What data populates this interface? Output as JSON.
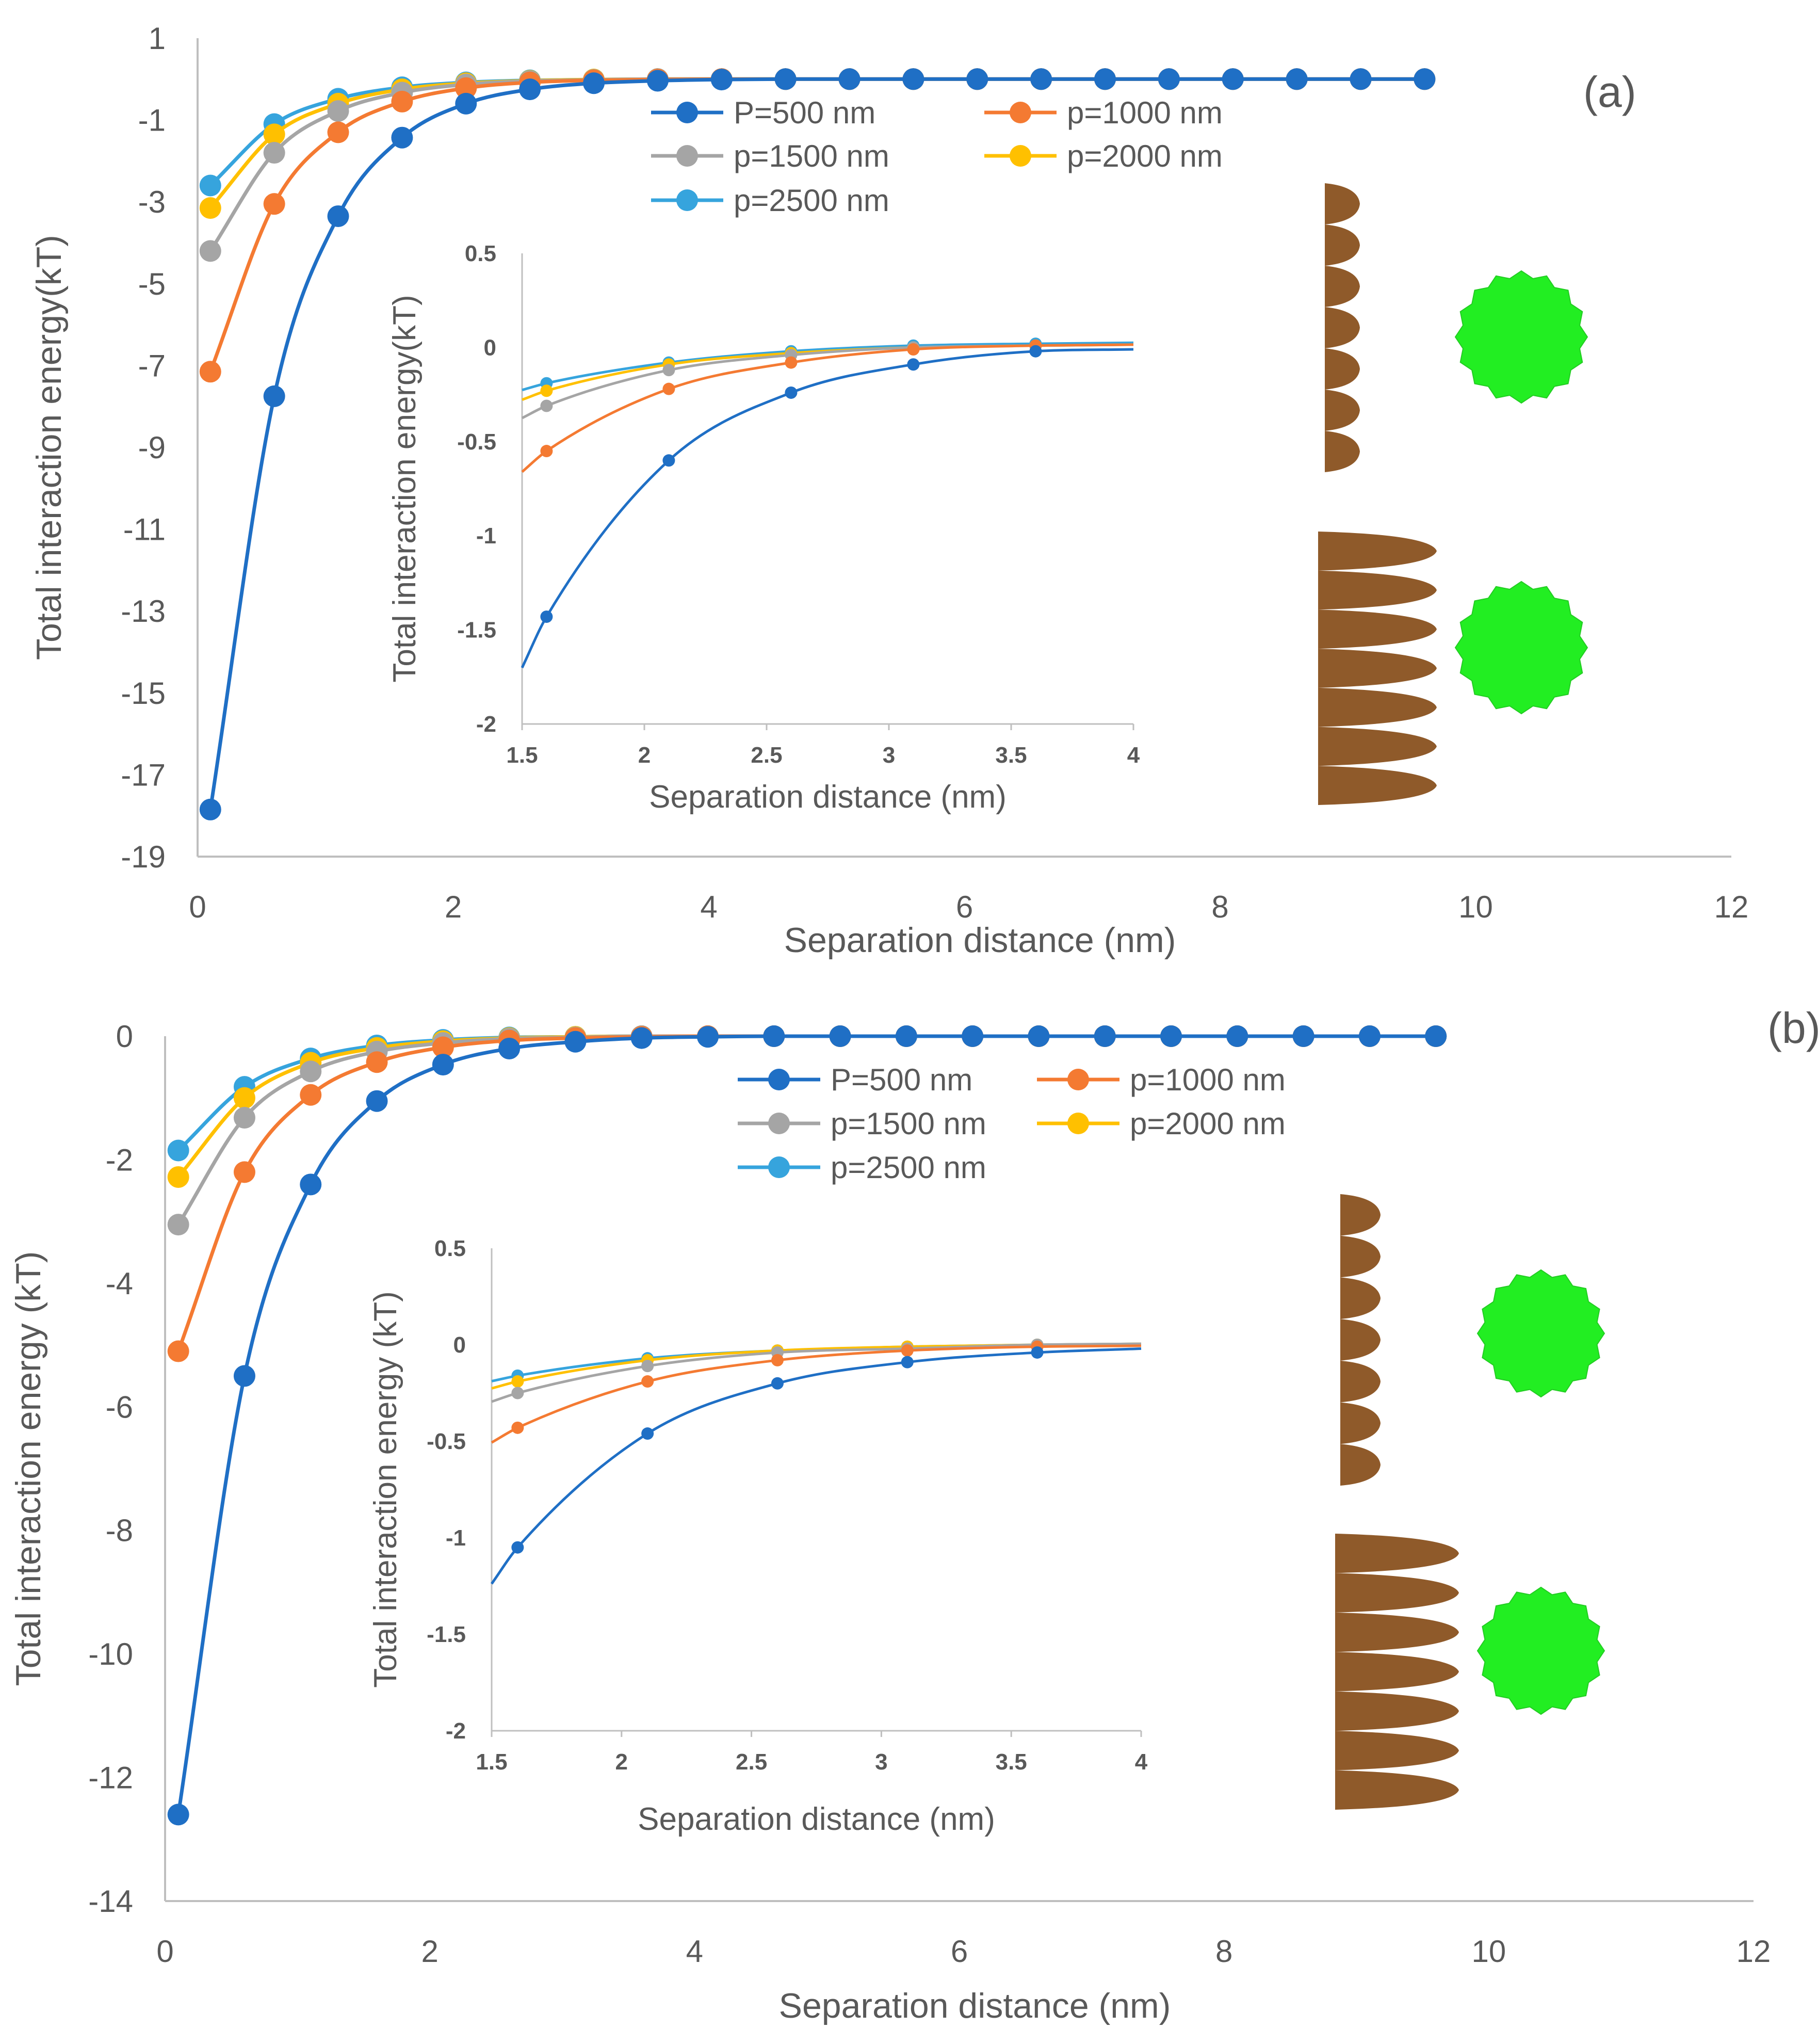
{
  "figure": {
    "colors": {
      "P500": "#1f6fc5",
      "p1000": "#f47a32",
      "p1500": "#a5a5a5",
      "p2000": "#ffc000",
      "p2500": "#36a4dd",
      "axis": "#bfbfbf",
      "text": "#595959",
      "sawtooth": "#8f5a2a",
      "particle": "#22ee22"
    },
    "icons": [
      "sawtooth-surface-icon",
      "spiky-particle-icon"
    ]
  },
  "chart_data": [
    {
      "type": "line",
      "panel": "(a)",
      "xlabel": "Separation distance (nm)",
      "ylabel": "Total interaction energy(kT)",
      "xlim": [
        0,
        12
      ],
      "ylim": [
        -19,
        1
      ],
      "xticks": [
        "0",
        "2",
        "4",
        "6",
        "8",
        "10",
        "12"
      ],
      "yticks": [
        "1",
        "-1",
        "-3",
        "-5",
        "-7",
        "-9",
        "-11",
        "-13",
        "-15",
        "-17",
        "-19"
      ],
      "legend_position": "top-center",
      "x": [
        0.1,
        0.6,
        1.1,
        1.6,
        2.1,
        2.6,
        3.1,
        3.6,
        4.1,
        4.6,
        5.1,
        5.6,
        6.1,
        6.6,
        7.1,
        7.6,
        8.1,
        8.6,
        9.1,
        9.6
      ],
      "series": [
        {
          "name": "P=500 nm",
          "key": "P500",
          "values": [
            -17.85,
            -7.75,
            -3.35,
            -1.43,
            -0.6,
            -0.25,
            -0.1,
            -0.04,
            -0.01,
            0.0,
            0.0,
            0.0,
            0.0,
            0.0,
            0.0,
            0.0,
            0.0,
            0.0,
            0.0,
            0.0
          ]
        },
        {
          "name": "p=1000 nm",
          "key": "p1000",
          "values": [
            -7.15,
            -3.05,
            -1.3,
            -0.55,
            -0.22,
            -0.08,
            -0.03,
            -0.01,
            0.0,
            0.0,
            0.0,
            0.0,
            0.0,
            0.0,
            0.0,
            0.0,
            0.0,
            0.0,
            0.0,
            0.0
          ]
        },
        {
          "name": "p=1500 nm",
          "key": "p1500",
          "values": [
            -4.2,
            -1.8,
            -0.78,
            -0.33,
            -0.13,
            -0.05,
            -0.02,
            0.0,
            0.0,
            0.0,
            0.0,
            0.0,
            0.0,
            0.0,
            0.0,
            0.0,
            0.0,
            0.0,
            0.0,
            0.0
          ]
        },
        {
          "name": "p=2000 nm",
          "key": "p2000",
          "values": [
            -3.15,
            -1.35,
            -0.6,
            -0.25,
            -0.1,
            -0.04,
            -0.01,
            0.0,
            0.0,
            0.0,
            0.0,
            0.0,
            0.0,
            0.0,
            0.0,
            0.0,
            0.0,
            0.0,
            0.0,
            0.0
          ]
        },
        {
          "name": "p=2500 nm",
          "key": "p2500",
          "values": [
            -2.6,
            -1.1,
            -0.48,
            -0.2,
            -0.08,
            -0.03,
            -0.01,
            0.0,
            0.0,
            0.0,
            0.0,
            0.0,
            0.0,
            0.0,
            0.0,
            0.0,
            0.0,
            0.0,
            0.0,
            0.0
          ]
        }
      ],
      "inset": {
        "xlabel": "Separation distance (nm)",
        "ylabel": "Total interaction energy(kT)",
        "xlim": [
          1.5,
          4
        ],
        "ylim": [
          -2,
          0.5
        ],
        "xticks": [
          "1.5",
          "2",
          "2.5",
          "3",
          "3.5",
          "4"
        ],
        "yticks": [
          "0.5",
          "0",
          "-0.5",
          "-1",
          "-1.5",
          "-2"
        ],
        "x": [
          1.6,
          2.1,
          2.6,
          3.1,
          3.6
        ],
        "series": [
          {
            "key": "P500",
            "values": [
              -1.43,
              -0.6,
              -0.24,
              -0.09,
              -0.02
            ]
          },
          {
            "key": "p1000",
            "values": [
              -0.55,
              -0.22,
              -0.08,
              -0.01,
              0.01
            ]
          },
          {
            "key": "p1500",
            "values": [
              -0.31,
              -0.12,
              -0.04,
              0.0,
              0.01
            ]
          },
          {
            "key": "p2000",
            "values": [
              -0.23,
              -0.09,
              -0.03,
              0.0,
              0.01
            ]
          },
          {
            "key": "p2500",
            "values": [
              -0.19,
              -0.08,
              -0.02,
              0.01,
              0.02
            ]
          }
        ]
      }
    },
    {
      "type": "line",
      "panel": "(b)",
      "xlabel": "Separation distance (nm)",
      "ylabel": "Total interaction energy  (kT)",
      "xlim": [
        0,
        12
      ],
      "ylim": [
        -14,
        0
      ],
      "xticks": [
        "0",
        "2",
        "4",
        "6",
        "8",
        "10",
        "12"
      ],
      "yticks": [
        "0",
        "-2",
        "-4",
        "-6",
        "-8",
        "-10",
        "-12",
        "-14"
      ],
      "legend_position": "top-center",
      "x": [
        0.1,
        0.6,
        1.1,
        1.6,
        2.1,
        2.6,
        3.1,
        3.6,
        4.1,
        4.6,
        5.1,
        5.6,
        6.1,
        6.6,
        7.1,
        7.6,
        8.1,
        8.6,
        9.1,
        9.6
      ],
      "series": [
        {
          "name": "P=500 nm",
          "key": "P500",
          "values": [
            -12.6,
            -5.5,
            -2.4,
            -1.05,
            -0.46,
            -0.2,
            -0.09,
            -0.03,
            -0.01,
            0.0,
            0.0,
            0.0,
            0.0,
            0.0,
            0.0,
            0.0,
            0.0,
            0.0,
            0.0,
            0.0
          ]
        },
        {
          "name": "p=1000 nm",
          "key": "p1000",
          "values": [
            -5.1,
            -2.2,
            -0.95,
            -0.42,
            -0.18,
            -0.07,
            -0.03,
            -0.01,
            0.0,
            0.0,
            0.0,
            0.0,
            0.0,
            0.0,
            0.0,
            0.0,
            0.0,
            0.0,
            0.0,
            0.0
          ]
        },
        {
          "name": "p=1500 nm",
          "key": "p1500",
          "values": [
            -3.05,
            -1.32,
            -0.57,
            -0.25,
            -0.11,
            -0.04,
            -0.02,
            0.0,
            0.0,
            0.0,
            0.0,
            0.0,
            0.0,
            0.0,
            0.0,
            0.0,
            0.0,
            0.0,
            0.0,
            0.0
          ]
        },
        {
          "name": "p=2000 nm",
          "key": "p2000",
          "values": [
            -2.28,
            -1.0,
            -0.43,
            -0.19,
            -0.08,
            -0.03,
            -0.01,
            0.0,
            0.0,
            0.0,
            0.0,
            0.0,
            0.0,
            0.0,
            0.0,
            0.0,
            0.0,
            0.0,
            0.0,
            0.0
          ]
        },
        {
          "name": "p=2500 nm",
          "key": "p2500",
          "values": [
            -1.85,
            -0.82,
            -0.36,
            -0.15,
            -0.06,
            -0.02,
            -0.01,
            0.0,
            0.0,
            0.0,
            0.0,
            0.0,
            0.0,
            0.0,
            0.0,
            0.0,
            0.0,
            0.0,
            0.0,
            0.0
          ]
        }
      ],
      "inset": {
        "xlabel": "Separation distance (nm)",
        "ylabel": "Total interaction energy (kT)",
        "xlim": [
          1.5,
          4
        ],
        "ylim": [
          -2,
          0.5
        ],
        "xticks": [
          "1.5",
          "2",
          "2.5",
          "3",
          "3.5",
          "4"
        ],
        "yticks": [
          "0.5",
          "0",
          "-0.5",
          "-1",
          "-1.5",
          "-2"
        ],
        "x": [
          1.6,
          2.1,
          2.6,
          3.1,
          3.6
        ],
        "series": [
          {
            "key": "P500",
            "values": [
              -1.05,
              -0.46,
              -0.2,
              -0.09,
              -0.04
            ]
          },
          {
            "key": "p1000",
            "values": [
              -0.43,
              -0.19,
              -0.08,
              -0.03,
              -0.01
            ]
          },
          {
            "key": "p1500",
            "values": [
              -0.25,
              -0.11,
              -0.04,
              -0.02,
              0.0
            ]
          },
          {
            "key": "p2000",
            "values": [
              -0.19,
              -0.08,
              -0.03,
              -0.01,
              0.0
            ]
          },
          {
            "key": "p2500",
            "values": [
              -0.16,
              -0.07,
              -0.03,
              -0.01,
              0.0
            ]
          }
        ]
      }
    }
  ]
}
